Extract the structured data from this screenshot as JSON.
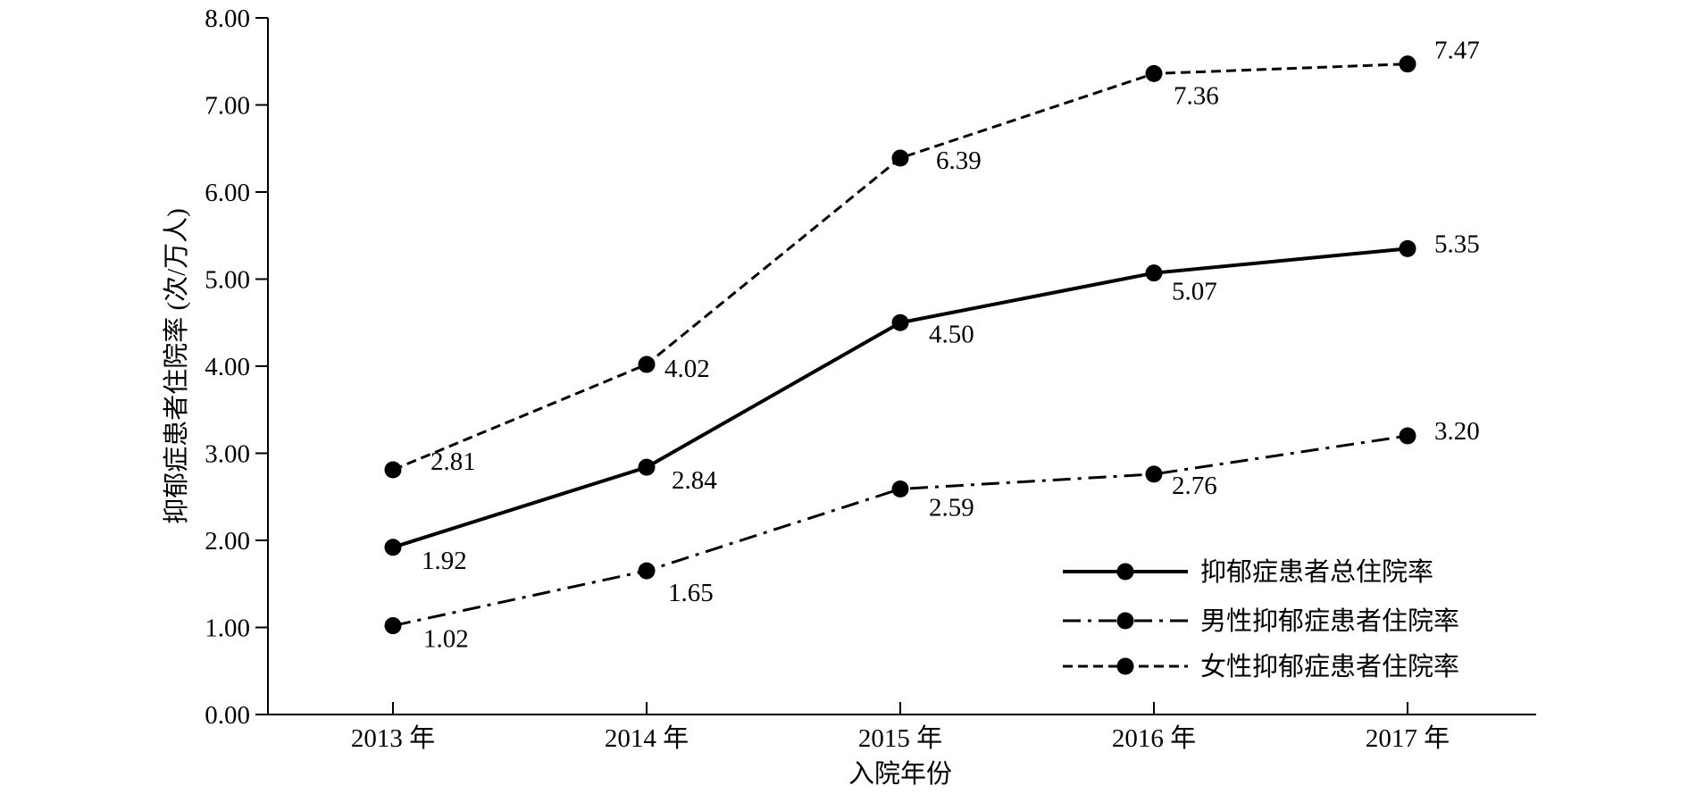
{
  "chart_data": {
    "type": "line",
    "title": "",
    "xlabel": "入院年份",
    "ylabel": "抑郁症患者住院率 (次/万人)",
    "categories": [
      "2013 年",
      "2014 年",
      "2015 年",
      "2016 年",
      "2017 年"
    ],
    "ylim": [
      0,
      8
    ],
    "yticks": [
      "0.00",
      "1.00",
      "2.00",
      "3.00",
      "4.00",
      "5.00",
      "6.00",
      "7.00",
      "8.00"
    ],
    "grid": false,
    "legend_position": "bottom-right",
    "series": [
      {
        "name": "抑郁症患者总住院率",
        "style": "solid",
        "values": [
          1.92,
          2.84,
          4.5,
          5.07,
          5.35
        ],
        "labels": [
          "1.92",
          "2.84",
          "4.50",
          "5.07",
          "5.35"
        ]
      },
      {
        "name": "男性抑郁症患者住院率",
        "style": "dashdot",
        "values": [
          1.02,
          1.65,
          2.59,
          2.76,
          3.2
        ],
        "labels": [
          "1.02",
          "1.65",
          "2.59",
          "2.76",
          "3.20"
        ]
      },
      {
        "name": "女性抑郁症患者住院率",
        "style": "dashed",
        "values": [
          2.81,
          4.02,
          6.39,
          7.36,
          7.47
        ],
        "labels": [
          "2.81",
          "4.02",
          "6.39",
          "7.36",
          "7.47"
        ]
      }
    ],
    "colors": {
      "line": "#000000",
      "marker": "#000000",
      "background": "#ffffff"
    }
  }
}
